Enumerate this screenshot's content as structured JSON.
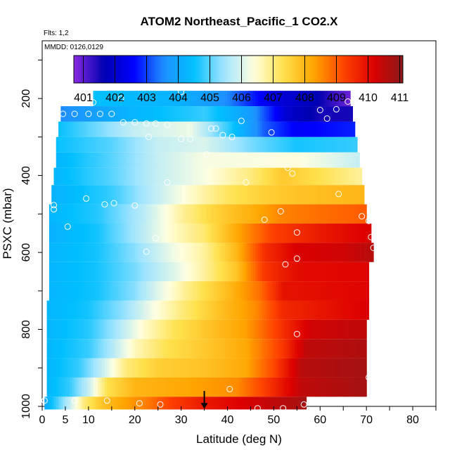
{
  "chart_data": {
    "type": "heatmap",
    "title": "ATOM2 Northeast_Pacific_1 CO2.X",
    "flights_label": "Flts: 1,2",
    "dates_label": "MMDD: 0126,0129",
    "xlabel": "Latitude (deg N)",
    "ylabel": "PSXC (mbar)",
    "xlim": [
      0,
      85
    ],
    "ylim": [
      1000,
      50
    ],
    "x_ticks": [
      0,
      5,
      10,
      20,
      30,
      40,
      50,
      60,
      70,
      80
    ],
    "y_ticks": [
      200,
      400,
      600,
      800,
      1000
    ],
    "colorbar": {
      "min": 400.7,
      "max": 411.1,
      "tick_values": [
        401,
        402,
        403,
        404,
        405,
        406,
        407,
        408,
        409,
        410,
        411
      ],
      "colors": [
        "#8a2be2",
        "#0000b0",
        "#0000ff",
        "#1e90ff",
        "#00bfff",
        "#9fe4ff",
        "#ffffe0",
        "#ffe14d",
        "#ffa500",
        "#ff4500",
        "#dd0000",
        "#8b1a1a"
      ]
    },
    "levels_mbar": [
      200,
      240,
      280,
      320,
      360,
      400,
      450,
      500,
      550,
      600,
      650,
      700,
      750,
      800,
      850,
      900,
      950,
      1000
    ],
    "level_extents_lat": [
      [
        11,
        66.5
      ],
      [
        4,
        67
      ],
      [
        3.5,
        67.5
      ],
      [
        3,
        68
      ],
      [
        3,
        68.5
      ],
      [
        2.5,
        69
      ],
      [
        2,
        69.5
      ],
      [
        1.5,
        70
      ],
      [
        1.5,
        71
      ],
      [
        1.5,
        71.5
      ],
      [
        1.5,
        70.5
      ],
      [
        1.5,
        70.5
      ],
      [
        1,
        70.5
      ],
      [
        1,
        70
      ],
      [
        1,
        70
      ],
      [
        1,
        70
      ],
      [
        1,
        70
      ],
      [
        0.5,
        57
      ]
    ],
    "level_profiles": [
      [
        [
          11,
          404.5
        ],
        [
          30,
          404.2
        ],
        [
          40,
          403.5
        ],
        [
          50,
          402.2
        ],
        [
          58,
          401.8
        ],
        [
          66.5,
          400.9
        ]
      ],
      [
        [
          4,
          403.5
        ],
        [
          20,
          404.3
        ],
        [
          35,
          404.8
        ],
        [
          45,
          403.8
        ],
        [
          53,
          402.0
        ],
        [
          60,
          401.5
        ],
        [
          67,
          401.5
        ]
      ],
      [
        [
          3.5,
          404.5
        ],
        [
          20,
          405.8
        ],
        [
          32,
          406.2
        ],
        [
          40,
          404.8
        ],
        [
          48,
          403.2
        ],
        [
          55,
          402.5
        ],
        [
          67.5,
          402.8
        ]
      ],
      [
        [
          3,
          404.5
        ],
        [
          15,
          405.0
        ],
        [
          25,
          405.8
        ],
        [
          35,
          406.0
        ],
        [
          45,
          405.2
        ],
        [
          55,
          404.6
        ],
        [
          68,
          404.8
        ]
      ],
      [
        [
          3,
          404.3
        ],
        [
          15,
          405.0
        ],
        [
          25,
          405.8
        ],
        [
          35,
          406.3
        ],
        [
          45,
          406.3
        ],
        [
          55,
          406.4
        ],
        [
          68.5,
          405.8
        ]
      ],
      [
        [
          2.5,
          404.3
        ],
        [
          15,
          405.0
        ],
        [
          25,
          405.8
        ],
        [
          35,
          406.3
        ],
        [
          45,
          407.0
        ],
        [
          52,
          407.7
        ],
        [
          60,
          407.3
        ],
        [
          69,
          406.8
        ]
      ],
      [
        [
          2,
          404.2
        ],
        [
          15,
          404.8
        ],
        [
          25,
          405.8
        ],
        [
          32,
          406.5
        ],
        [
          40,
          407.2
        ],
        [
          48,
          407.6
        ],
        [
          55,
          407.8
        ],
        [
          62,
          407.9
        ],
        [
          69.5,
          408.0
        ]
      ],
      [
        [
          1.5,
          404.3
        ],
        [
          12,
          404.7
        ],
        [
          22,
          405.7
        ],
        [
          30,
          406.8
        ],
        [
          38,
          407.6
        ],
        [
          45,
          408.1
        ],
        [
          52,
          408.6
        ],
        [
          60,
          408.8
        ],
        [
          70,
          409.0
        ]
      ],
      [
        [
          1.5,
          404.2
        ],
        [
          12,
          404.6
        ],
        [
          20,
          405.5
        ],
        [
          28,
          406.5
        ],
        [
          35,
          407.1
        ],
        [
          42,
          408.2
        ],
        [
          50,
          409.3
        ],
        [
          60,
          409.8
        ],
        [
          71,
          410.2
        ]
      ],
      [
        [
          1.5,
          404.3
        ],
        [
          12,
          404.6
        ],
        [
          20,
          405.3
        ],
        [
          28,
          406.2
        ],
        [
          35,
          406.8
        ],
        [
          42,
          408.0
        ],
        [
          48,
          409.5
        ],
        [
          55,
          410.2
        ],
        [
          65,
          410.3
        ],
        [
          71.5,
          410.6
        ]
      ],
      [
        [
          1.5,
          404.3
        ],
        [
          12,
          404.6
        ],
        [
          20,
          405.2
        ],
        [
          28,
          406.0
        ],
        [
          35,
          406.8
        ],
        [
          42,
          407.8
        ],
        [
          48,
          409.4
        ],
        [
          55,
          410.0
        ],
        [
          70.5,
          410.1
        ]
      ],
      [
        [
          1.5,
          404.3
        ],
        [
          12,
          404.6
        ],
        [
          20,
          405.3
        ],
        [
          26,
          406.2
        ],
        [
          32,
          407.0
        ],
        [
          40,
          407.9
        ],
        [
          47,
          408.8
        ],
        [
          52,
          409.9
        ],
        [
          70.5,
          410.1
        ]
      ],
      [
        [
          1,
          404.3
        ],
        [
          10,
          404.6
        ],
        [
          18,
          405.4
        ],
        [
          24,
          406.3
        ],
        [
          30,
          407.0
        ],
        [
          38,
          407.8
        ],
        [
          46,
          408.5
        ],
        [
          52,
          409.6
        ],
        [
          70.5,
          410.2
        ]
      ],
      [
        [
          1,
          404.3
        ],
        [
          10,
          404.7
        ],
        [
          16,
          405.5
        ],
        [
          22,
          406.5
        ],
        [
          28,
          407.2
        ],
        [
          36,
          407.8
        ],
        [
          44,
          408.3
        ],
        [
          52,
          409.5
        ],
        [
          58,
          410.3
        ],
        [
          70,
          410.5
        ]
      ],
      [
        [
          1,
          404.3
        ],
        [
          10,
          404.8
        ],
        [
          15,
          405.6
        ],
        [
          20,
          406.6
        ],
        [
          27,
          407.3
        ],
        [
          35,
          407.7
        ],
        [
          44,
          408.2
        ],
        [
          52,
          409.4
        ],
        [
          57,
          410.5
        ],
        [
          70,
          410.7
        ]
      ],
      [
        [
          1,
          404.3
        ],
        [
          8,
          404.8
        ],
        [
          13,
          405.8
        ],
        [
          18,
          407.0
        ],
        [
          25,
          407.6
        ],
        [
          35,
          407.8
        ],
        [
          44,
          408.2
        ],
        [
          50,
          409.2
        ],
        [
          56,
          410.6
        ],
        [
          70,
          410.8
        ]
      ],
      [
        [
          1,
          404.3
        ],
        [
          6,
          404.8
        ],
        [
          10,
          405.8
        ],
        [
          14,
          407.3
        ],
        [
          20,
          408.0
        ],
        [
          30,
          408.2
        ],
        [
          42,
          408.5
        ],
        [
          48,
          409.3
        ],
        [
          56,
          410.5
        ],
        [
          70,
          410.8
        ]
      ],
      [
        [
          0.5,
          404.0
        ],
        [
          3,
          404.8
        ],
        [
          6,
          405.8
        ],
        [
          9,
          407.0
        ],
        [
          13,
          407.8
        ],
        [
          18,
          408.3
        ],
        [
          22,
          408.6
        ],
        [
          28,
          409.3
        ],
        [
          35,
          409.8
        ],
        [
          44,
          410.2
        ],
        [
          50,
          410.5
        ],
        [
          57,
          410.8
        ]
      ]
    ],
    "sample_points": [
      [
        11,
        210
      ],
      [
        17,
        200
      ],
      [
        30,
        183
      ],
      [
        66,
        208
      ],
      [
        60,
        230
      ],
      [
        63.5,
        228
      ],
      [
        61.5,
        252
      ],
      [
        2,
        240
      ],
      [
        4.5,
        240
      ],
      [
        7,
        240
      ],
      [
        10,
        240
      ],
      [
        12.5,
        240
      ],
      [
        15,
        240
      ],
      [
        17.5,
        262
      ],
      [
        20,
        262
      ],
      [
        22.5,
        265
      ],
      [
        24.5,
        265
      ],
      [
        27,
        268
      ],
      [
        36.5,
        278
      ],
      [
        37.5,
        278
      ],
      [
        39,
        295
      ],
      [
        23,
        300
      ],
      [
        30,
        305
      ],
      [
        32,
        305
      ],
      [
        41,
        300
      ],
      [
        43,
        258
      ],
      [
        49.5,
        288
      ],
      [
        35.5,
        345
      ],
      [
        53,
        380
      ],
      [
        54,
        395
      ],
      [
        27,
        418
      ],
      [
        44,
        418
      ],
      [
        64,
        448
      ],
      [
        2.5,
        477
      ],
      [
        2.5,
        488
      ],
      [
        9.5,
        460
      ],
      [
        13.5,
        475
      ],
      [
        15.5,
        472
      ],
      [
        20,
        478
      ],
      [
        5.5,
        533
      ],
      [
        48,
        515
      ],
      [
        51.5,
        493
      ],
      [
        55,
        548
      ],
      [
        69,
        506
      ],
      [
        70.5,
        518
      ],
      [
        71,
        560
      ],
      [
        71.5,
        588
      ],
      [
        24.5,
        563
      ],
      [
        22.5,
        598
      ],
      [
        52.5,
        631
      ],
      [
        55,
        616
      ],
      [
        55,
        812
      ],
      [
        70.5,
        925
      ],
      [
        40.5,
        955
      ],
      [
        0.5,
        985
      ],
      [
        7,
        985
      ],
      [
        14,
        985
      ],
      [
        21,
        992
      ],
      [
        25.5,
        995
      ],
      [
        46.5,
        1005
      ],
      [
        52,
        1005
      ],
      [
        56.5,
        995
      ]
    ],
    "arrow_lat": 35,
    "arrow_pressure_from": 960,
    "arrow_pressure_to": 1006
  }
}
